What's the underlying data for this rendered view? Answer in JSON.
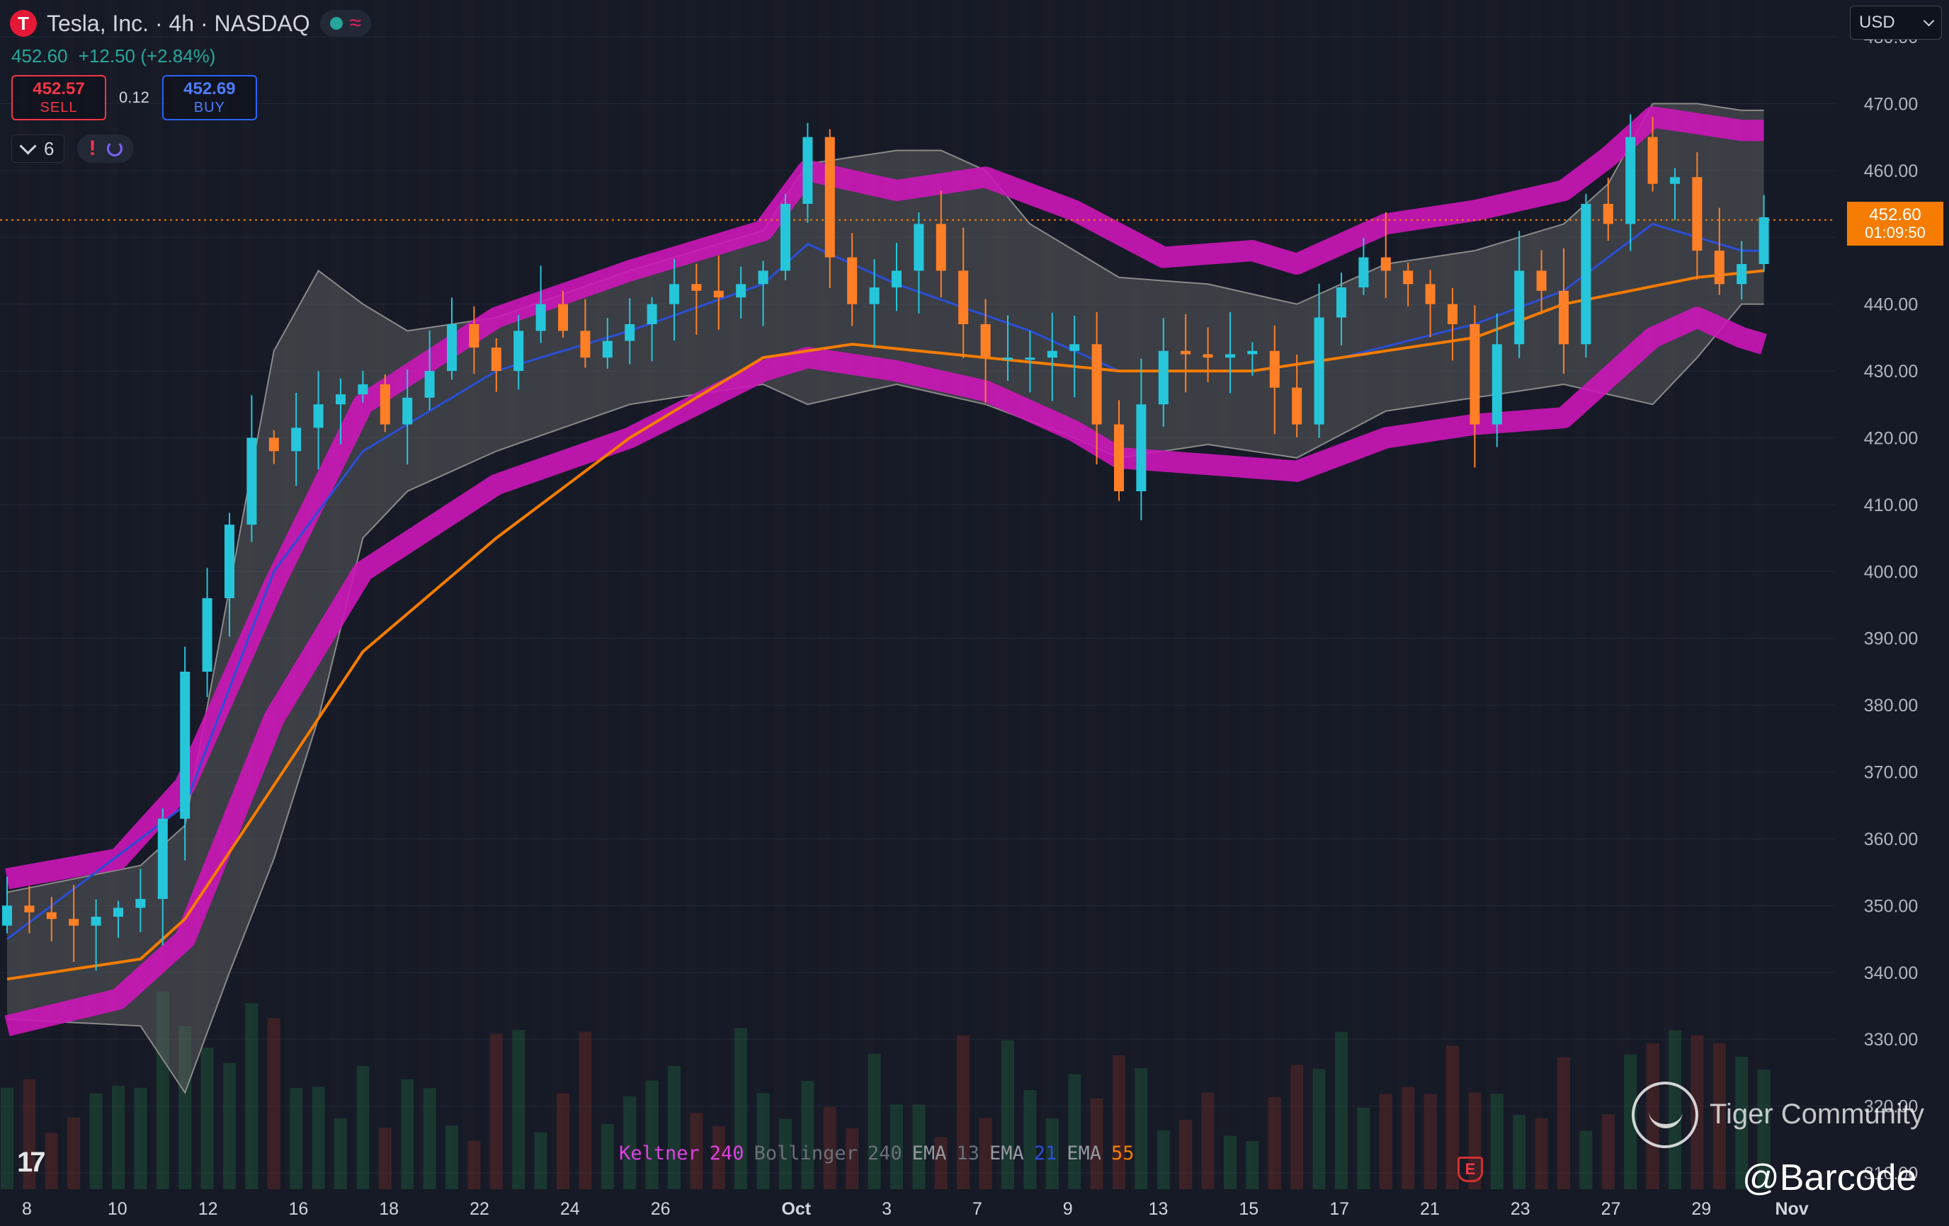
{
  "header": {
    "logo_letter": "T",
    "title": "Tesla, Inc. · 4h · NASDAQ",
    "status_icon": "green-dot-icon",
    "wave_icon": "≈"
  },
  "quote": {
    "last": "452.60",
    "change": "+12.50 (+2.84%)"
  },
  "trade": {
    "sell_price": "452.57",
    "sell_label": "SELL",
    "spread": "0.12",
    "buy_price": "452.69",
    "buy_label": "BUY"
  },
  "indicators_toggle": {
    "count": "6",
    "alert_icon": "!"
  },
  "currency": "USD",
  "last_price_tag": {
    "price": "452.60",
    "countdown": "01:09:50"
  },
  "legend": [
    {
      "name": "Keltner",
      "param": "240",
      "name_color": "#e040e0",
      "param_color": "#e040e0"
    },
    {
      "name": "Bollinger",
      "param": "240",
      "name_color": "#6b6f7a",
      "param_color": "#6b6f7a"
    },
    {
      "name": "EMA",
      "param": "13",
      "name_color": "#9598a1",
      "param_color": "#6b6f7a"
    },
    {
      "name": "EMA",
      "param": "21",
      "name_color": "#9598a1",
      "param_color": "#2a4fd6"
    },
    {
      "name": "EMA",
      "param": "55",
      "name_color": "#9598a1",
      "param_color": "#f57c00"
    }
  ],
  "tv_logo": "17",
  "earnings_marker": "E",
  "watermark": {
    "brand": "Tiger Community",
    "handle": "@Barcode"
  },
  "colors": {
    "up": "#26c6da",
    "down": "#ff7f27",
    "keltner": "#cc16b8",
    "bollinger_fill": "#6a6a6a",
    "ema13": "#2a4fd6",
    "ema55": "#f57c00",
    "background": "#151a26"
  },
  "chart_data": {
    "type": "candlestick",
    "timeframe": "4h",
    "ylim": [
      310,
      480
    ],
    "y_ticks": [
      "480.00",
      "470.00",
      "460.00",
      "450.00",
      "440.00",
      "430.00",
      "420.00",
      "410.00",
      "400.00",
      "390.00",
      "380.00",
      "370.00",
      "360.00",
      "350.00",
      "340.00",
      "330.00",
      "320.00",
      "310.00"
    ],
    "x_ticks": [
      {
        "label": "8",
        "i": 0
      },
      {
        "label": "10",
        "i": 4
      },
      {
        "label": "12",
        "i": 8
      },
      {
        "label": "16",
        "i": 12
      },
      {
        "label": "18",
        "i": 16
      },
      {
        "label": "22",
        "i": 20
      },
      {
        "label": "24",
        "i": 24
      },
      {
        "label": "26",
        "i": 28
      },
      {
        "label": "Oct",
        "i": 34
      },
      {
        "label": "3",
        "i": 38
      },
      {
        "label": "7",
        "i": 42
      },
      {
        "label": "9",
        "i": 46
      },
      {
        "label": "13",
        "i": 50
      },
      {
        "label": "15",
        "i": 54
      },
      {
        "label": "17",
        "i": 58
      },
      {
        "label": "21",
        "i": 62
      },
      {
        "label": "23",
        "i": 66
      },
      {
        "label": "27",
        "i": 70
      },
      {
        "label": "29",
        "i": 74
      },
      {
        "label": "Nov",
        "i": 78
      }
    ],
    "close_anchors": [
      [
        0,
        350
      ],
      [
        3,
        347
      ],
      [
        6,
        351
      ],
      [
        7,
        363
      ],
      [
        8,
        385
      ],
      [
        10,
        407
      ],
      [
        11,
        420
      ],
      [
        12,
        418
      ],
      [
        14,
        425
      ],
      [
        16,
        428
      ],
      [
        17,
        422
      ],
      [
        19,
        430
      ],
      [
        20,
        437
      ],
      [
        22,
        430
      ],
      [
        23,
        436
      ],
      [
        24,
        440
      ],
      [
        26,
        432
      ],
      [
        28,
        437
      ],
      [
        30,
        443
      ],
      [
        32,
        441
      ],
      [
        34,
        445
      ],
      [
        35,
        455
      ],
      [
        36,
        465
      ],
      [
        37,
        447
      ],
      [
        38,
        440
      ],
      [
        40,
        445
      ],
      [
        41,
        452
      ],
      [
        42,
        445
      ],
      [
        43,
        437
      ],
      [
        44,
        432
      ],
      [
        46,
        432
      ],
      [
        48,
        434
      ],
      [
        49,
        422
      ],
      [
        50,
        412
      ],
      [
        51,
        425
      ],
      [
        52,
        433
      ],
      [
        54,
        432
      ],
      [
        56,
        433
      ],
      [
        58,
        422
      ],
      [
        59,
        438
      ],
      [
        61,
        447
      ],
      [
        63,
        443
      ],
      [
        65,
        437
      ],
      [
        66,
        422
      ],
      [
        67,
        434
      ],
      [
        68,
        445
      ],
      [
        69,
        442
      ],
      [
        70,
        434
      ],
      [
        71,
        455
      ],
      [
        72,
        452
      ],
      [
        73,
        465
      ],
      [
        74,
        458
      ],
      [
        75,
        459
      ],
      [
        76,
        448
      ],
      [
        77,
        443
      ],
      [
        78,
        446
      ],
      [
        79,
        453
      ]
    ],
    "ema13_anchors": [
      [
        0,
        345
      ],
      [
        8,
        365
      ],
      [
        12,
        400
      ],
      [
        16,
        418
      ],
      [
        22,
        430
      ],
      [
        28,
        436
      ],
      [
        34,
        443
      ],
      [
        36,
        449
      ],
      [
        40,
        443
      ],
      [
        46,
        436
      ],
      [
        50,
        430
      ],
      [
        56,
        430
      ],
      [
        60,
        432
      ],
      [
        66,
        437
      ],
      [
        70,
        442
      ],
      [
        74,
        452
      ],
      [
        78,
        448
      ],
      [
        79,
        448
      ]
    ],
    "ema55_anchors": [
      [
        0,
        339
      ],
      [
        6,
        342
      ],
      [
        8,
        348
      ],
      [
        12,
        368
      ],
      [
        16,
        388
      ],
      [
        22,
        405
      ],
      [
        28,
        420
      ],
      [
        34,
        432
      ],
      [
        38,
        434
      ],
      [
        44,
        432
      ],
      [
        50,
        430
      ],
      [
        56,
        430
      ],
      [
        60,
        432
      ],
      [
        66,
        435
      ],
      [
        70,
        440
      ],
      [
        76,
        444
      ],
      [
        79,
        445
      ]
    ],
    "keltner_upper_anchors": [
      [
        0,
        354
      ],
      [
        5,
        357
      ],
      [
        8,
        368
      ],
      [
        12,
        398
      ],
      [
        16,
        425
      ],
      [
        22,
        438
      ],
      [
        28,
        445
      ],
      [
        34,
        451
      ],
      [
        36,
        460
      ],
      [
        40,
        457
      ],
      [
        44,
        459
      ],
      [
        48,
        454
      ],
      [
        52,
        447
      ],
      [
        56,
        448
      ],
      [
        58,
        446
      ],
      [
        62,
        452
      ],
      [
        66,
        454
      ],
      [
        70,
        457
      ],
      [
        72,
        462
      ],
      [
        74,
        468
      ],
      [
        76,
        467
      ],
      [
        78,
        466
      ],
      [
        79,
        466
      ]
    ],
    "keltner_lower_anchors": [
      [
        0,
        332
      ],
      [
        5,
        336
      ],
      [
        8,
        345
      ],
      [
        12,
        378
      ],
      [
        16,
        400
      ],
      [
        22,
        413
      ],
      [
        28,
        420
      ],
      [
        34,
        430
      ],
      [
        36,
        432
      ],
      [
        40,
        430
      ],
      [
        44,
        427
      ],
      [
        48,
        421
      ],
      [
        50,
        417
      ],
      [
        54,
        416
      ],
      [
        58,
        415
      ],
      [
        62,
        420
      ],
      [
        66,
        422
      ],
      [
        70,
        423
      ],
      [
        72,
        429
      ],
      [
        74,
        435
      ],
      [
        76,
        438
      ],
      [
        78,
        435
      ],
      [
        79,
        434
      ]
    ],
    "bollinger_upper_anchors": [
      [
        0,
        352
      ],
      [
        6,
        356
      ],
      [
        8,
        362
      ],
      [
        12,
        433
      ],
      [
        14,
        445
      ],
      [
        16,
        440
      ],
      [
        18,
        436
      ],
      [
        22,
        438
      ],
      [
        28,
        445
      ],
      [
        34,
        451
      ],
      [
        36,
        461
      ],
      [
        40,
        463
      ],
      [
        42,
        463
      ],
      [
        44,
        460
      ],
      [
        46,
        452
      ],
      [
        48,
        448
      ],
      [
        50,
        444
      ],
      [
        54,
        443
      ],
      [
        58,
        440
      ],
      [
        62,
        446
      ],
      [
        66,
        448
      ],
      [
        70,
        452
      ],
      [
        72,
        458
      ],
      [
        74,
        470
      ],
      [
        76,
        470
      ],
      [
        78,
        469
      ],
      [
        79,
        469
      ]
    ],
    "bollinger_lower_anchors": [
      [
        0,
        333
      ],
      [
        6,
        332
      ],
      [
        8,
        322
      ],
      [
        10,
        340
      ],
      [
        12,
        357
      ],
      [
        14,
        378
      ],
      [
        16,
        405
      ],
      [
        18,
        412
      ],
      [
        22,
        418
      ],
      [
        28,
        425
      ],
      [
        34,
        428
      ],
      [
        36,
        425
      ],
      [
        40,
        428
      ],
      [
        44,
        425
      ],
      [
        48,
        420
      ],
      [
        50,
        417
      ],
      [
        54,
        419
      ],
      [
        58,
        417
      ],
      [
        62,
        424
      ],
      [
        66,
        426
      ],
      [
        70,
        428
      ],
      [
        74,
        425
      ],
      [
        76,
        432
      ],
      [
        78,
        440
      ],
      [
        79,
        440
      ]
    ]
  }
}
